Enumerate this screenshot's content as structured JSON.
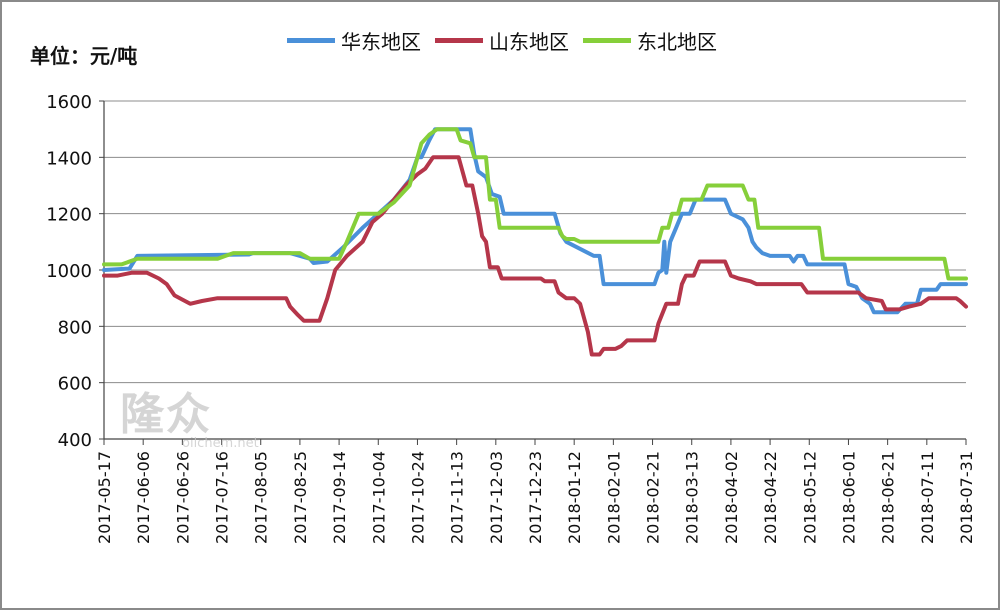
{
  "unit_label": "单位：元/吨",
  "watermark": {
    "main": "隆众",
    "sub": "oilchem.net"
  },
  "colors": {
    "east": "#4a90d9",
    "shandong": "#b5364a",
    "northeast": "#86cf3a",
    "grid": "#8c8c8c",
    "axis": "#444444"
  },
  "chart_data": {
    "type": "line",
    "title": "",
    "xlabel": "",
    "ylabel": "单位：元/吨",
    "ylim": [
      400,
      1600
    ],
    "yticks": [
      400,
      600,
      800,
      1000,
      1200,
      1400,
      1600
    ],
    "grid": true,
    "legend_position": "top",
    "x_range": [
      "2017-05-17",
      "2018-07-31"
    ],
    "xticks": [
      "2017-05-17",
      "2017-06-06",
      "2017-06-26",
      "2017-07-16",
      "2017-08-05",
      "2017-08-25",
      "2017-09-14",
      "2017-10-04",
      "2017-10-24",
      "2017-11-13",
      "2017-12-03",
      "2017-12-23",
      "2018-01-12",
      "2018-02-01",
      "2018-02-21",
      "2018-03-13",
      "2018-04-02",
      "2018-04-22",
      "2018-05-12",
      "2018-06-01",
      "2018-06-21",
      "2018-07-11",
      "2018-07-31"
    ],
    "series": [
      {
        "name": "华东地区",
        "color": "#4a90d9",
        "points": [
          [
            "2017-05-17",
            1000
          ],
          [
            "2017-05-30",
            1005
          ],
          [
            "2017-06-03",
            1050
          ],
          [
            "2017-07-30",
            1055
          ],
          [
            "2017-08-01",
            1060
          ],
          [
            "2017-08-20",
            1060
          ],
          [
            "2017-08-30",
            1040
          ],
          [
            "2017-09-01",
            1025
          ],
          [
            "2017-09-08",
            1030
          ],
          [
            "2017-09-16",
            1080
          ],
          [
            "2017-09-26",
            1150
          ],
          [
            "2017-10-04",
            1200
          ],
          [
            "2017-10-12",
            1250
          ],
          [
            "2017-10-20",
            1320
          ],
          [
            "2017-10-24",
            1400
          ],
          [
            "2017-10-26",
            1400
          ],
          [
            "2017-10-30",
            1460
          ],
          [
            "2017-11-02",
            1500
          ],
          [
            "2017-11-20",
            1500
          ],
          [
            "2017-11-22",
            1410
          ],
          [
            "2017-11-24",
            1350
          ],
          [
            "2017-11-28",
            1330
          ],
          [
            "2017-12-01",
            1270
          ],
          [
            "2017-12-05",
            1260
          ],
          [
            "2017-12-07",
            1200
          ],
          [
            "2018-01-02",
            1200
          ],
          [
            "2018-01-05",
            1130
          ],
          [
            "2018-01-08",
            1100
          ],
          [
            "2018-01-22",
            1050
          ],
          [
            "2018-01-25",
            1050
          ],
          [
            "2018-01-27",
            950
          ],
          [
            "2018-02-22",
            950
          ],
          [
            "2018-02-24",
            990
          ],
          [
            "2018-02-26",
            1000
          ],
          [
            "2018-02-27",
            1100
          ],
          [
            "2018-02-28",
            990
          ],
          [
            "2018-03-02",
            1100
          ],
          [
            "2018-03-05",
            1150
          ],
          [
            "2018-03-08",
            1200
          ],
          [
            "2018-03-12",
            1200
          ],
          [
            "2018-03-15",
            1250
          ],
          [
            "2018-03-30",
            1250
          ],
          [
            "2018-04-02",
            1200
          ],
          [
            "2018-04-08",
            1180
          ],
          [
            "2018-04-11",
            1150
          ],
          [
            "2018-04-13",
            1100
          ],
          [
            "2018-04-15",
            1080
          ],
          [
            "2018-04-18",
            1060
          ],
          [
            "2018-04-22",
            1050
          ],
          [
            "2018-05-02",
            1050
          ],
          [
            "2018-05-04",
            1030
          ],
          [
            "2018-05-06",
            1050
          ],
          [
            "2018-05-09",
            1050
          ],
          [
            "2018-05-11",
            1020
          ],
          [
            "2018-05-30",
            1020
          ],
          [
            "2018-06-01",
            950
          ],
          [
            "2018-06-05",
            940
          ],
          [
            "2018-06-08",
            900
          ],
          [
            "2018-06-12",
            880
          ],
          [
            "2018-06-14",
            850
          ],
          [
            "2018-06-26",
            850
          ],
          [
            "2018-06-30",
            880
          ],
          [
            "2018-07-06",
            880
          ],
          [
            "2018-07-08",
            930
          ],
          [
            "2018-07-16",
            930
          ],
          [
            "2018-07-18",
            950
          ],
          [
            "2018-07-31",
            950
          ]
        ]
      },
      {
        "name": "山东地区",
        "color": "#b5364a",
        "points": [
          [
            "2017-05-17",
            980
          ],
          [
            "2017-05-24",
            980
          ],
          [
            "2017-05-31",
            990
          ],
          [
            "2017-06-08",
            990
          ],
          [
            "2017-06-14",
            970
          ],
          [
            "2017-06-18",
            950
          ],
          [
            "2017-06-22",
            910
          ],
          [
            "2017-06-26",
            895
          ],
          [
            "2017-06-30",
            880
          ],
          [
            "2017-07-06",
            890
          ],
          [
            "2017-07-14",
            900
          ],
          [
            "2017-08-18",
            900
          ],
          [
            "2017-08-20",
            870
          ],
          [
            "2017-08-24",
            840
          ],
          [
            "2017-08-27",
            820
          ],
          [
            "2017-09-04",
            820
          ],
          [
            "2017-09-08",
            900
          ],
          [
            "2017-09-12",
            1000
          ],
          [
            "2017-09-18",
            1050
          ],
          [
            "2017-09-26",
            1100
          ],
          [
            "2017-10-01",
            1170
          ],
          [
            "2017-10-06",
            1200
          ],
          [
            "2017-10-12",
            1250
          ],
          [
            "2017-10-18",
            1300
          ],
          [
            "2017-10-24",
            1340
          ],
          [
            "2017-10-28",
            1360
          ],
          [
            "2017-11-01",
            1400
          ],
          [
            "2017-11-14",
            1400
          ],
          [
            "2017-11-16",
            1350
          ],
          [
            "2017-11-18",
            1300
          ],
          [
            "2017-11-21",
            1300
          ],
          [
            "2017-11-24",
            1200
          ],
          [
            "2017-11-26",
            1120
          ],
          [
            "2017-11-28",
            1100
          ],
          [
            "2017-11-30",
            1010
          ],
          [
            "2017-12-04",
            1010
          ],
          [
            "2017-12-06",
            970
          ],
          [
            "2017-12-26",
            970
          ],
          [
            "2017-12-28",
            960
          ],
          [
            "2018-01-02",
            960
          ],
          [
            "2018-01-04",
            920
          ],
          [
            "2018-01-08",
            900
          ],
          [
            "2018-01-12",
            900
          ],
          [
            "2018-01-15",
            880
          ],
          [
            "2018-01-17",
            830
          ],
          [
            "2018-01-19",
            780
          ],
          [
            "2018-01-21",
            700
          ],
          [
            "2018-01-25",
            700
          ],
          [
            "2018-01-27",
            720
          ],
          [
            "2018-02-02",
            720
          ],
          [
            "2018-02-05",
            730
          ],
          [
            "2018-02-08",
            750
          ],
          [
            "2018-02-22",
            750
          ],
          [
            "2018-02-24",
            810
          ],
          [
            "2018-02-28",
            880
          ],
          [
            "2018-03-06",
            880
          ],
          [
            "2018-03-08",
            950
          ],
          [
            "2018-03-10",
            980
          ],
          [
            "2018-03-14",
            980
          ],
          [
            "2018-03-17",
            1030
          ],
          [
            "2018-03-30",
            1030
          ],
          [
            "2018-04-02",
            980
          ],
          [
            "2018-04-06",
            970
          ],
          [
            "2018-04-12",
            960
          ],
          [
            "2018-04-15",
            950
          ],
          [
            "2018-05-08",
            950
          ],
          [
            "2018-05-11",
            920
          ],
          [
            "2018-06-06",
            920
          ],
          [
            "2018-06-10",
            900
          ],
          [
            "2018-06-18",
            890
          ],
          [
            "2018-06-20",
            860
          ],
          [
            "2018-06-24",
            860
          ],
          [
            "2018-06-27",
            860
          ],
          [
            "2018-07-02",
            870
          ],
          [
            "2018-07-08",
            880
          ],
          [
            "2018-07-12",
            900
          ],
          [
            "2018-07-26",
            900
          ],
          [
            "2018-07-28",
            890
          ],
          [
            "2018-07-31",
            870
          ]
        ]
      },
      {
        "name": "东北地区",
        "color": "#86cf3a",
        "points": [
          [
            "2017-05-17",
            1020
          ],
          [
            "2017-05-26",
            1020
          ],
          [
            "2017-06-03",
            1040
          ],
          [
            "2017-07-14",
            1040
          ],
          [
            "2017-07-18",
            1050
          ],
          [
            "2017-07-22",
            1060
          ],
          [
            "2017-08-25",
            1060
          ],
          [
            "2017-08-30",
            1040
          ],
          [
            "2017-09-14",
            1040
          ],
          [
            "2017-09-18",
            1100
          ],
          [
            "2017-09-24",
            1200
          ],
          [
            "2017-10-04",
            1200
          ],
          [
            "2017-10-12",
            1240
          ],
          [
            "2017-10-20",
            1300
          ],
          [
            "2017-10-26",
            1450
          ],
          [
            "2017-10-30",
            1480
          ],
          [
            "2017-11-03",
            1500
          ],
          [
            "2017-11-13",
            1500
          ],
          [
            "2017-11-15",
            1460
          ],
          [
            "2017-11-20",
            1450
          ],
          [
            "2017-11-22",
            1400
          ],
          [
            "2017-11-28",
            1400
          ],
          [
            "2017-11-30",
            1250
          ],
          [
            "2017-12-03",
            1250
          ],
          [
            "2017-12-05",
            1150
          ],
          [
            "2018-01-04",
            1150
          ],
          [
            "2018-01-06",
            1120
          ],
          [
            "2018-01-08",
            1110
          ],
          [
            "2018-01-12",
            1110
          ],
          [
            "2018-01-15",
            1100
          ],
          [
            "2018-02-24",
            1100
          ],
          [
            "2018-02-26",
            1150
          ],
          [
            "2018-03-01",
            1150
          ],
          [
            "2018-03-03",
            1200
          ],
          [
            "2018-03-06",
            1200
          ],
          [
            "2018-03-08",
            1250
          ],
          [
            "2018-03-18",
            1250
          ],
          [
            "2018-03-21",
            1300
          ],
          [
            "2018-04-08",
            1300
          ],
          [
            "2018-04-11",
            1250
          ],
          [
            "2018-04-14",
            1250
          ],
          [
            "2018-04-16",
            1150
          ],
          [
            "2018-05-17",
            1150
          ],
          [
            "2018-05-19",
            1040
          ],
          [
            "2018-07-20",
            1040
          ],
          [
            "2018-07-22",
            970
          ],
          [
            "2018-07-31",
            970
          ]
        ]
      }
    ]
  }
}
